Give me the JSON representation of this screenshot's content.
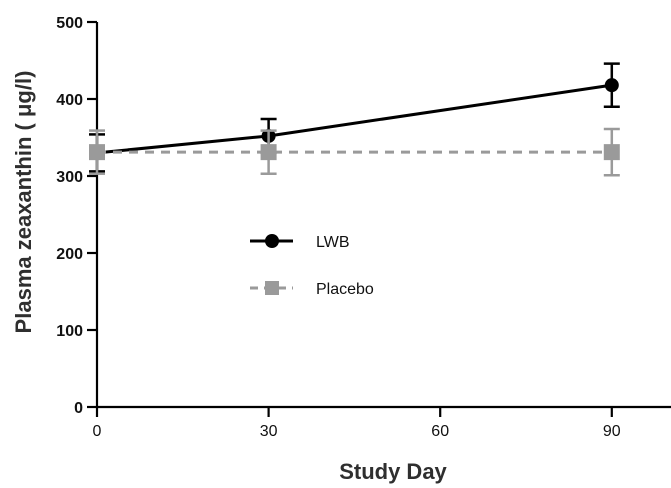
{
  "chart_data": {
    "type": "line",
    "title": "",
    "xlabel": "Study Day",
    "ylabel": "Plasma zeaxanthin ( μg/l)",
    "xlim": [
      0,
      100
    ],
    "ylim": [
      0,
      500
    ],
    "x_ticks": [
      0,
      30,
      60,
      90
    ],
    "y_ticks": [
      0,
      100,
      200,
      300,
      400,
      500
    ],
    "grid": false,
    "legend_position": "center-left",
    "series": [
      {
        "name": "LWB",
        "color": "#000000",
        "marker": "circle",
        "line_style": "solid",
        "x": [
          0,
          30,
          90
        ],
        "y": [
          330,
          352,
          418
        ],
        "error": [
          24,
          22,
          28
        ]
      },
      {
        "name": "Placebo",
        "color": "#9a9a9a",
        "marker": "square",
        "line_style": "dashed",
        "x": [
          0,
          30,
          90
        ],
        "y": [
          331,
          331,
          331
        ],
        "error": [
          28,
          28,
          30
        ]
      }
    ]
  }
}
